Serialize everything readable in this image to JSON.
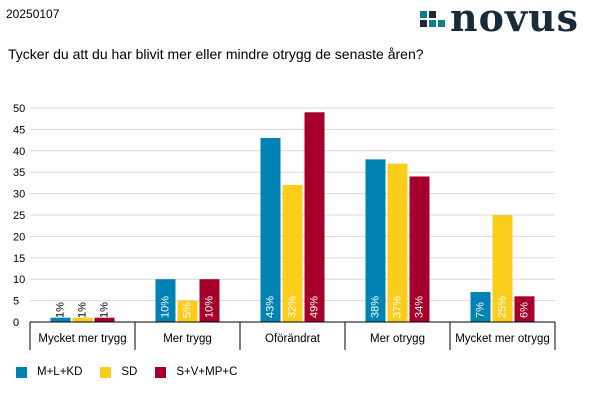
{
  "header": {
    "date": "20250107",
    "brand": "novus"
  },
  "question": "Tycker du att du har blivit mer eller mindre otrygg de senaste åren?",
  "colors": {
    "series1": "#0083b4",
    "series2": "#fdcd1c",
    "series3": "#a5002b",
    "logo_teal": "#0f7f8c",
    "logo_dark": "#1b2a3a"
  },
  "chart_data": {
    "type": "bar",
    "title": "Tycker du att du har blivit mer eller mindre otrygg de senaste åren?",
    "categories": [
      "Mycket mer trygg",
      "Mer trygg",
      "Oförändrat",
      "Mer otrygg",
      "Mycket mer otrygg"
    ],
    "series": [
      {
        "name": "M+L+KD",
        "color": "#0083b4",
        "values": [
          1,
          10,
          43,
          38,
          7
        ]
      },
      {
        "name": "SD",
        "color": "#fdcd1c",
        "values": [
          1,
          5,
          32,
          37,
          25
        ]
      },
      {
        "name": "S+V+MP+C",
        "color": "#a5002b",
        "values": [
          1,
          10,
          49,
          34,
          6
        ]
      }
    ],
    "ylim": [
      0,
      50
    ],
    "yticks": [
      0,
      5,
      10,
      15,
      20,
      25,
      30,
      35,
      40,
      45,
      50
    ],
    "grid": true,
    "value_suffix": "%",
    "legend": "bottom-left"
  }
}
